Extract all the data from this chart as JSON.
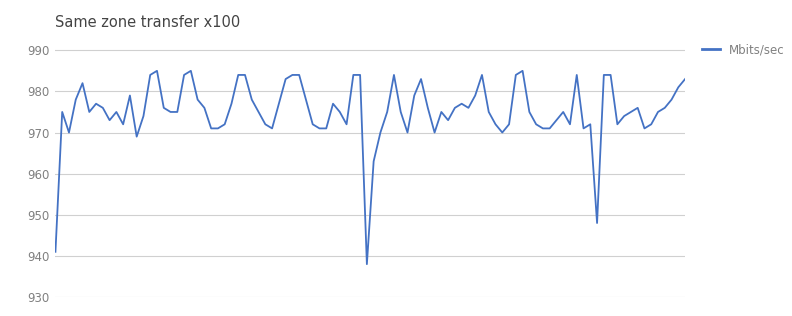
{
  "title": "Same zone transfer x100",
  "ylim": [
    930,
    993
  ],
  "yticks": [
    930,
    940,
    950,
    960,
    970,
    980,
    990
  ],
  "line_color": "#4472c4",
  "line_width": 1.3,
  "legend_label": "Mbits/sec",
  "background_color": "#ffffff",
  "grid_color": "#d0d0d0",
  "values": [
    941,
    975,
    970,
    978,
    982,
    975,
    977,
    976,
    973,
    975,
    972,
    979,
    969,
    974,
    984,
    985,
    976,
    975,
    975,
    984,
    985,
    978,
    976,
    971,
    971,
    972,
    977,
    984,
    984,
    978,
    975,
    972,
    971,
    977,
    983,
    984,
    984,
    978,
    972,
    971,
    971,
    977,
    975,
    972,
    984,
    984,
    938,
    963,
    970,
    975,
    984,
    975,
    970,
    979,
    983,
    976,
    970,
    975,
    973,
    976,
    977,
    976,
    979,
    984,
    975,
    972,
    970,
    972,
    984,
    985,
    975,
    972,
    971,
    971,
    973,
    975,
    972,
    984,
    971,
    972,
    948,
    984,
    984,
    972,
    974,
    975,
    976,
    971,
    972,
    975,
    976,
    978,
    981,
    983
  ]
}
